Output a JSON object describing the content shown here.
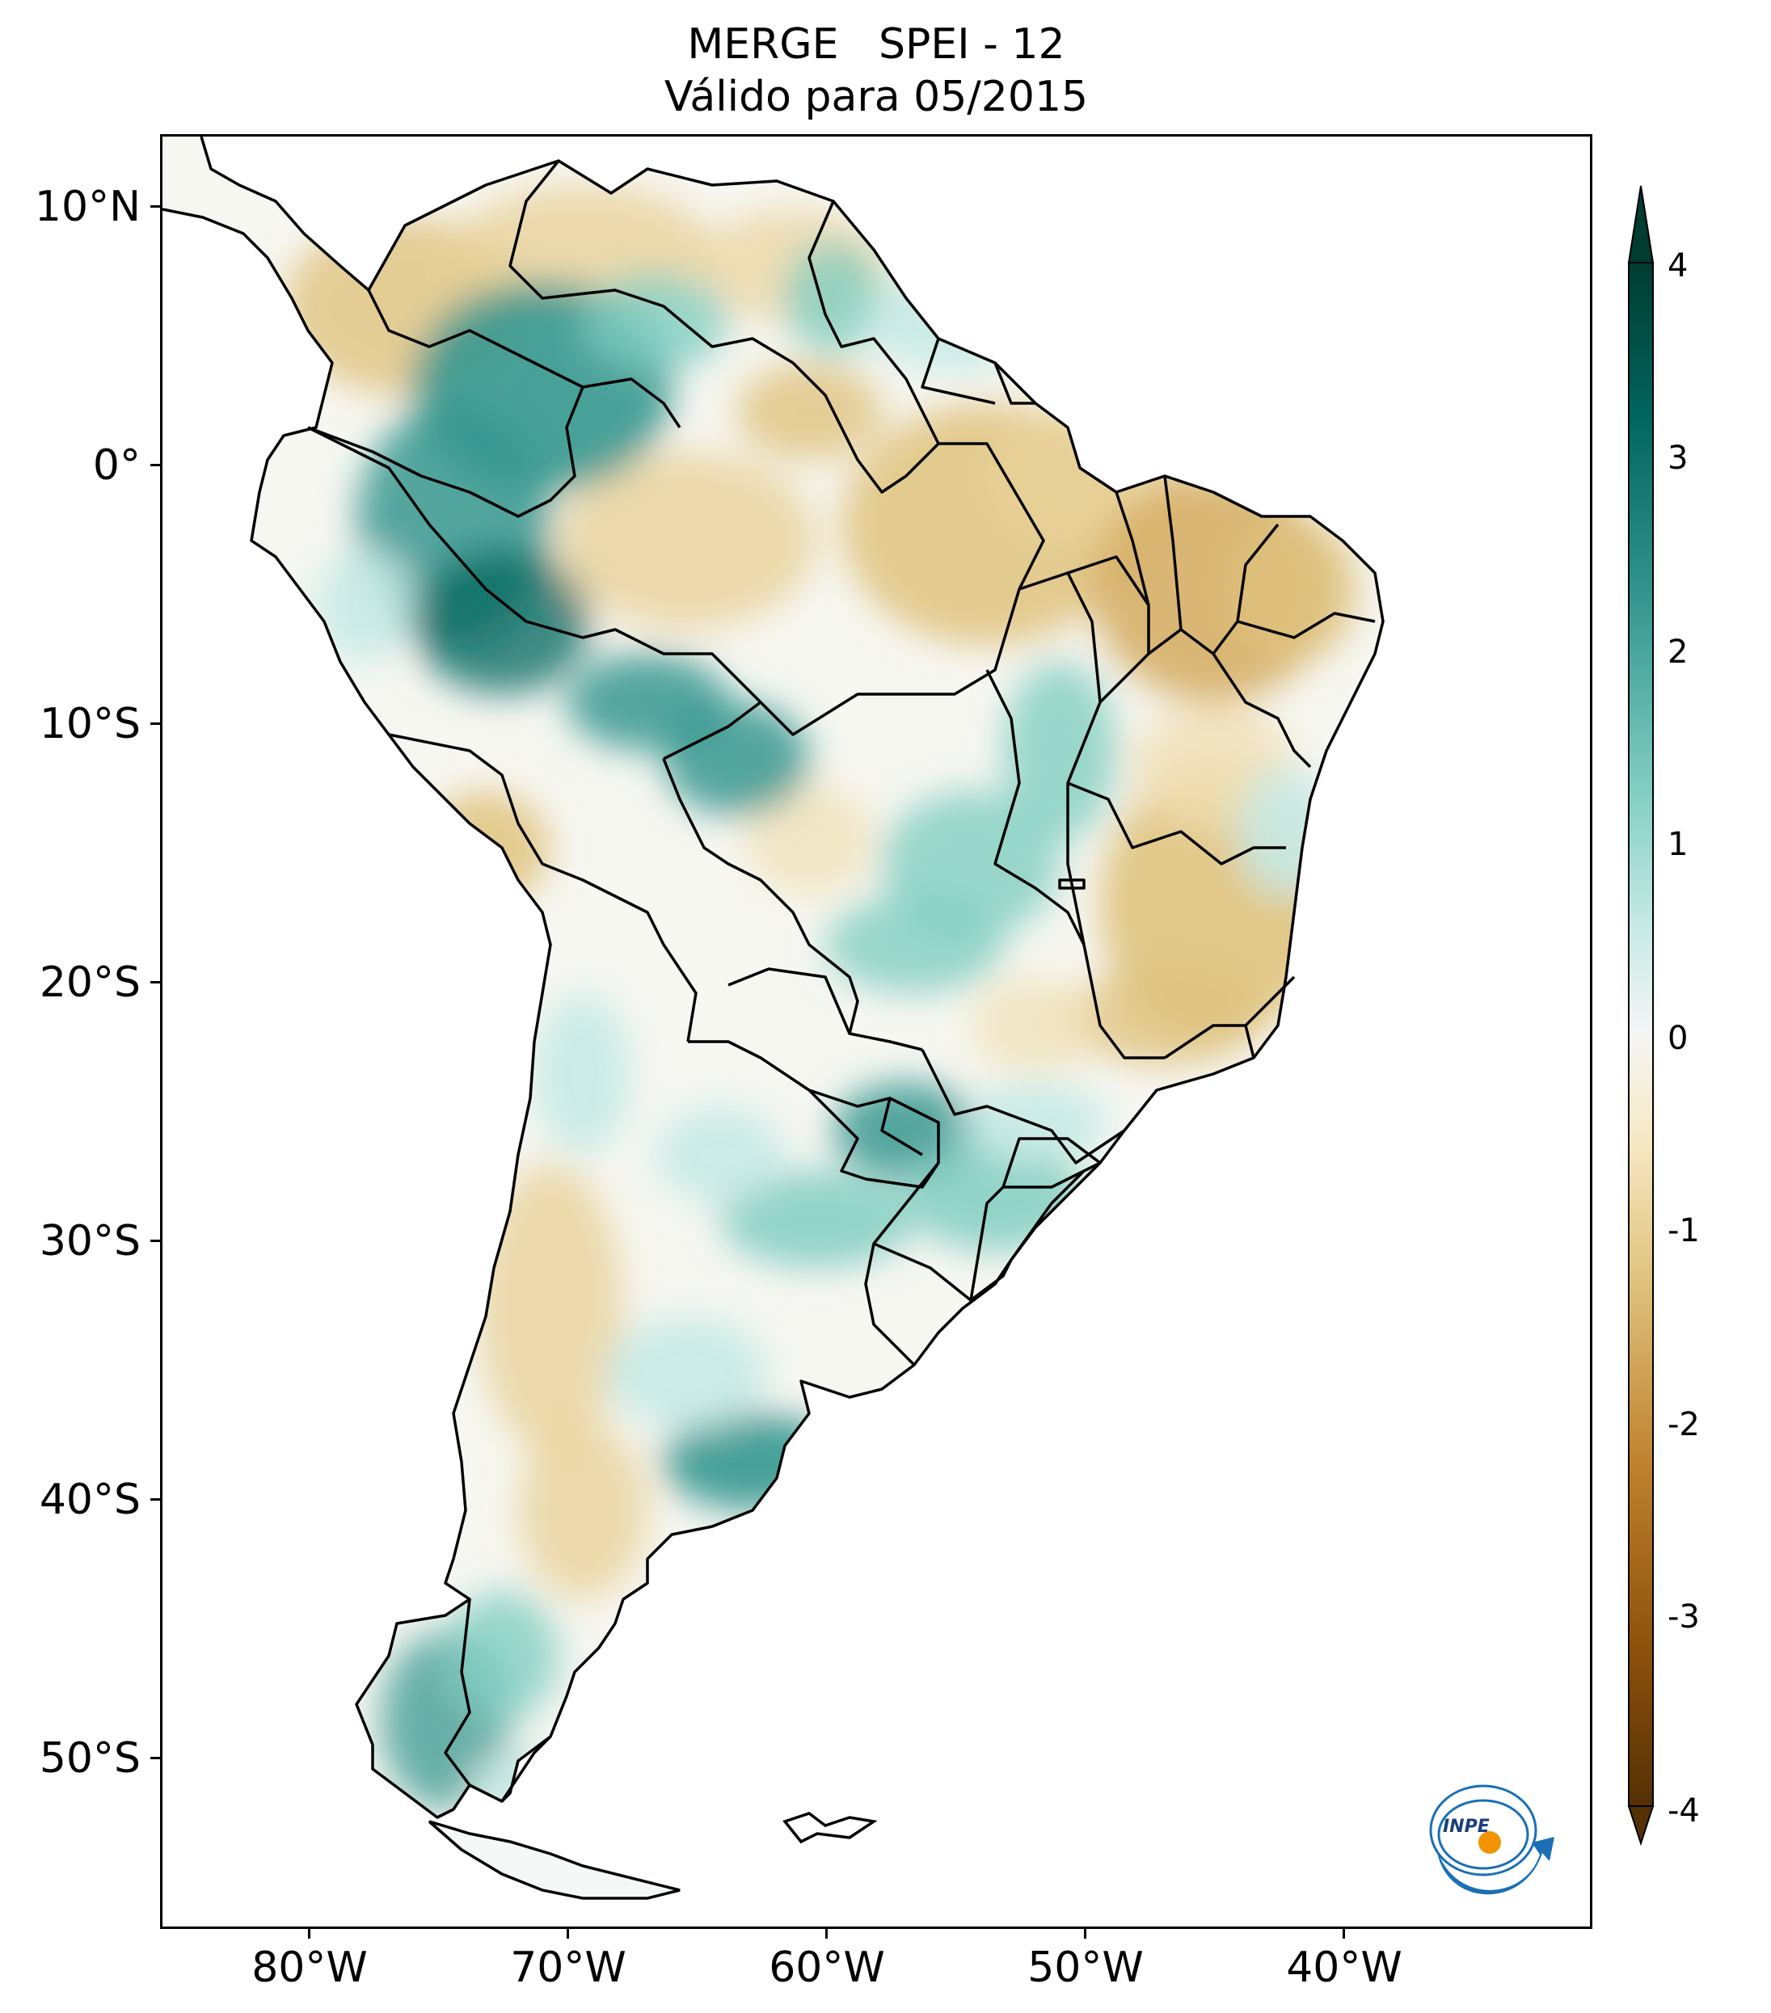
{
  "title": {
    "line1": "MERGE   SPEI - 12",
    "line2": "Válido para 05/2015"
  },
  "axes": {
    "lat_labels": [
      "10°N",
      "0°",
      "10°S",
      "20°S",
      "30°S",
      "40°S",
      "50°S"
    ],
    "lon_labels": [
      "80°W",
      "70°W",
      "60°W",
      "50°W",
      "40°W"
    ]
  },
  "colorbar": {
    "ticks": [
      "4",
      "3",
      "2",
      "1",
      "0",
      "-1",
      "-2",
      "-3",
      "-4"
    ],
    "min": -4,
    "max": 4,
    "colors": {
      "wet_extreme": "#003c30",
      "wet_strong": "#01665e",
      "wet_moderate": "#35978f",
      "wet_light": "#80cdc1",
      "wet_faint": "#c7eae5",
      "neutral": "#f5f5f5",
      "dry_faint": "#f6e8c3",
      "dry_light": "#dfc27d",
      "dry_moderate": "#bf812d",
      "dry_strong": "#8c510a",
      "dry_extreme": "#543005"
    }
  },
  "logo": {
    "text": "INPE"
  }
}
